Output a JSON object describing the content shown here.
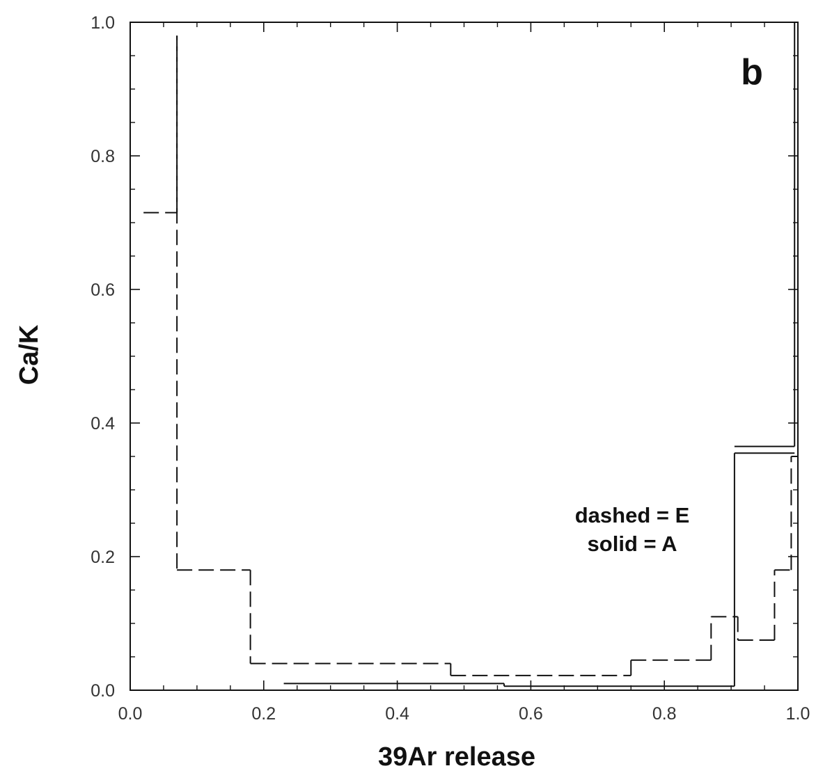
{
  "chart_data": {
    "type": "line",
    "panel_label": "b",
    "xlabel": "39Ar release",
    "ylabel": "Ca/K",
    "xlim": [
      0.0,
      1.0
    ],
    "ylim": [
      0.0,
      1.0
    ],
    "x_ticks": [
      0.0,
      0.2,
      0.4,
      0.6,
      0.8,
      1.0
    ],
    "x_tick_labels": [
      "0.0",
      "0.2",
      "0.4",
      "0.6",
      "0.8",
      "1.0"
    ],
    "y_ticks": [
      0.0,
      0.2,
      0.4,
      0.6,
      0.8,
      1.0
    ],
    "y_tick_labels": [
      "0.0",
      "0.2",
      "0.4",
      "0.6",
      "0.8",
      "1.0"
    ],
    "grid": false,
    "legend": {
      "placement": "right-middle",
      "lines": [
        "dashed = E",
        "solid = A"
      ]
    },
    "series": [
      {
        "name": "E",
        "style": "dashed",
        "steps": [
          {
            "x0": 0.02,
            "x1": 0.07,
            "y": 0.715
          },
          {
            "x0": 0.07,
            "x1": 0.07,
            "y": 0.98
          },
          {
            "x0": 0.07,
            "x1": 0.18,
            "y": 0.18
          },
          {
            "x0": 0.18,
            "x1": 0.48,
            "y": 0.04
          },
          {
            "x0": 0.48,
            "x1": 0.75,
            "y": 0.022
          },
          {
            "x0": 0.75,
            "x1": 0.87,
            "y": 0.045
          },
          {
            "x0": 0.87,
            "x1": 0.91,
            "y": 0.11
          },
          {
            "x0": 0.91,
            "x1": 0.965,
            "y": 0.075
          },
          {
            "x0": 0.965,
            "x1": 0.99,
            "y": 0.18
          },
          {
            "x0": 0.99,
            "x1": 1.0,
            "y": 0.35
          }
        ]
      },
      {
        "name": "A",
        "style": "solid",
        "steps": [
          {
            "x0": 0.23,
            "x1": 0.56,
            "y": 0.01
          },
          {
            "x0": 0.56,
            "x1": 0.905,
            "y": 0.006
          },
          {
            "x0": 0.905,
            "x1": 0.995,
            "y": 0.355
          },
          {
            "x0": 0.905,
            "x1": 0.995,
            "y": 0.365
          },
          {
            "x0": 0.995,
            "x1": 1.0,
            "y": 1.0
          }
        ]
      }
    ]
  }
}
